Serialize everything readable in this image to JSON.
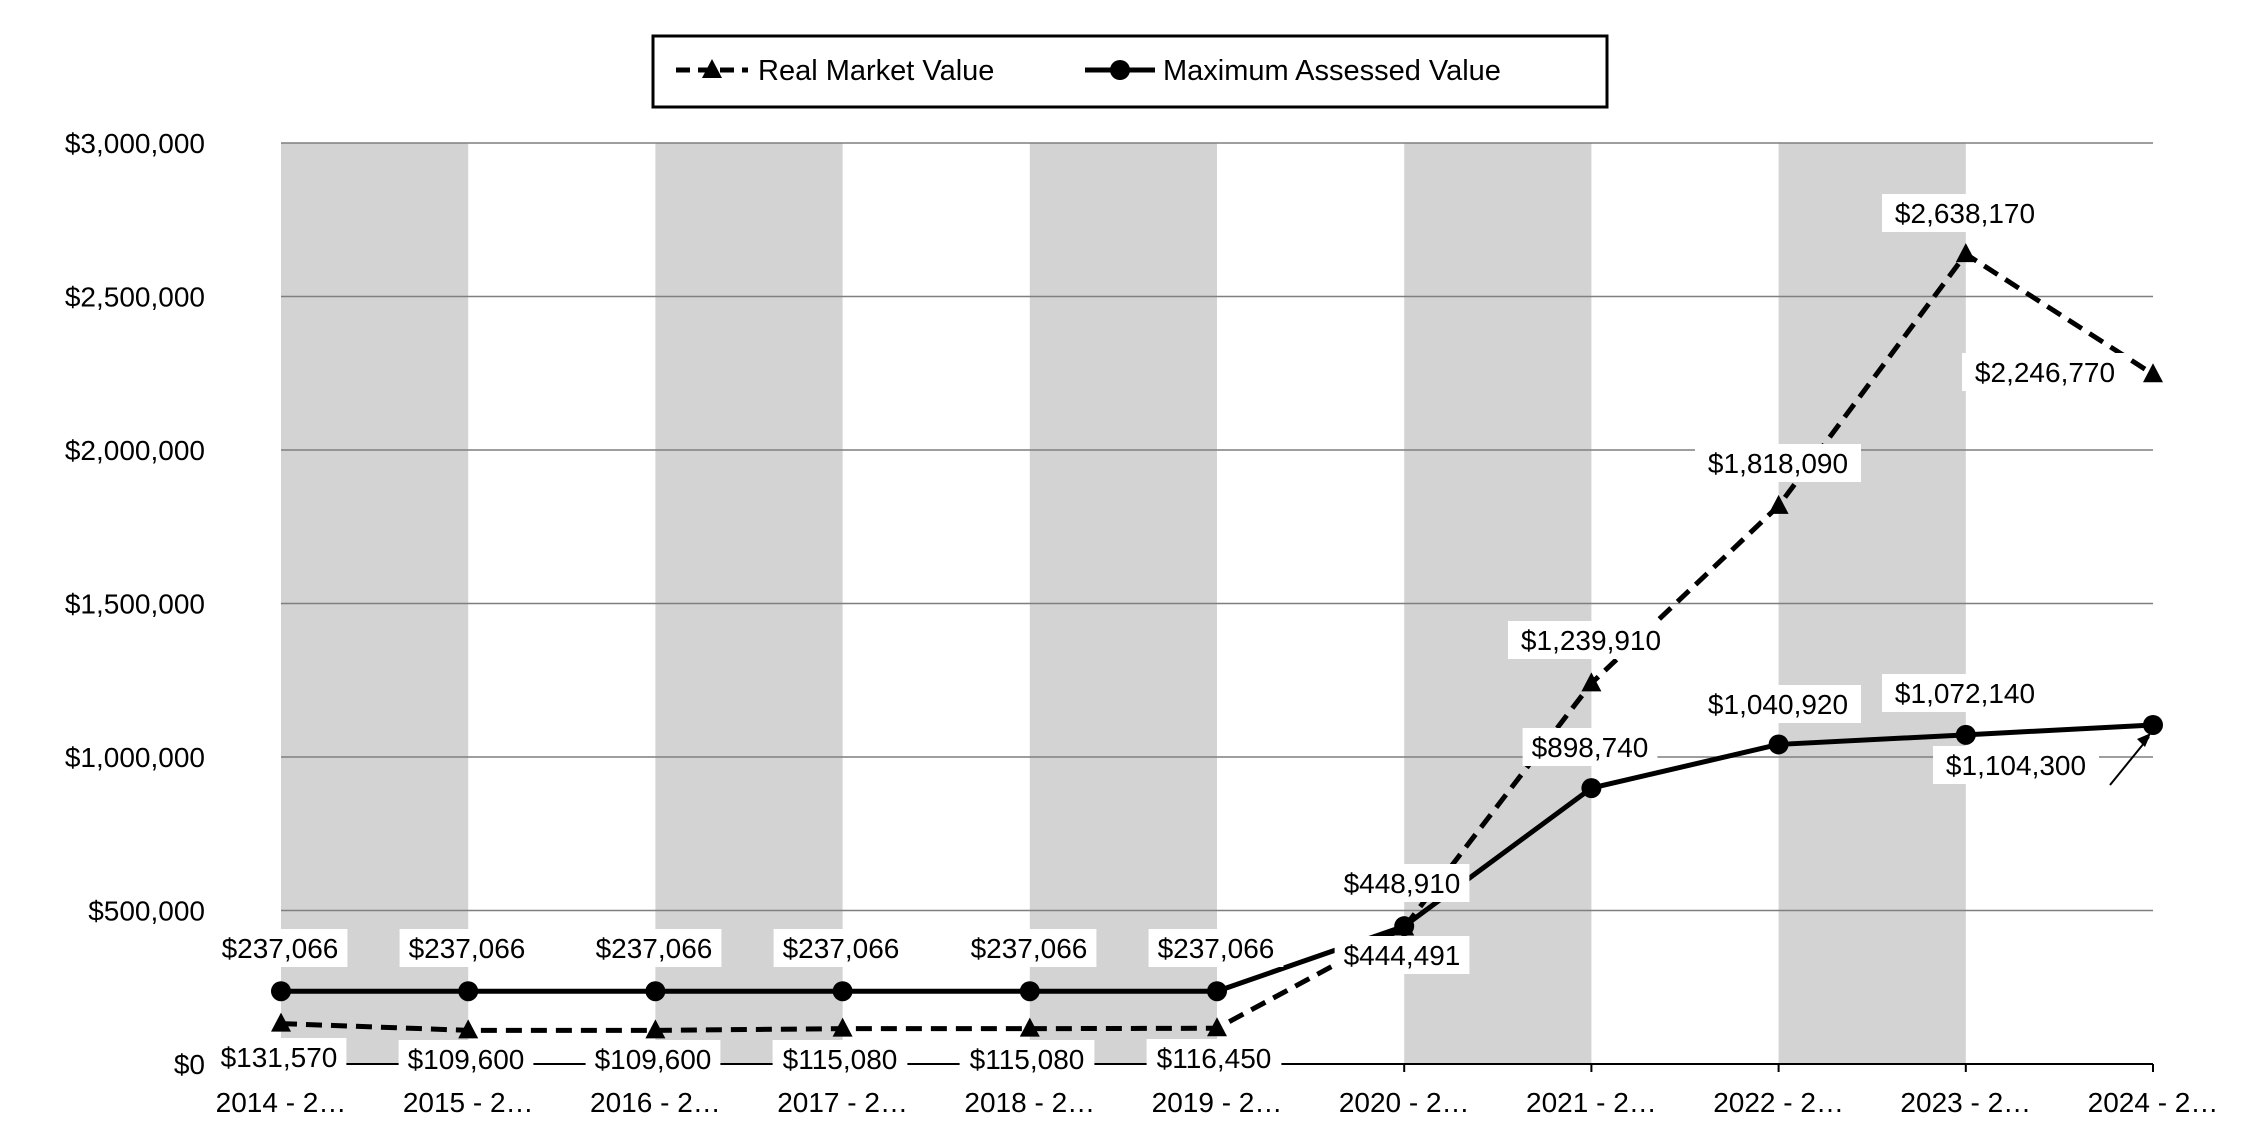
{
  "chart_data": {
    "type": "line",
    "title": "",
    "xlabel": "",
    "ylabel": "",
    "categories": [
      "2014 - 2…",
      "2015 - 2…",
      "2016 - 2…",
      "2017 - 2…",
      "2018 - 2…",
      "2019 - 2…",
      "2020 - 2…",
      "2021 - 2…",
      "2022 - 2…",
      "2023 - 2…",
      "2024 - 2…"
    ],
    "ylim": [
      0,
      3000000
    ],
    "yticks": [
      0,
      500000,
      1000000,
      1500000,
      2000000,
      2500000,
      3000000
    ],
    "ytick_labels": [
      "$0",
      "$500,000",
      "$1,000,000",
      "$1,500,000",
      "$2,000,000",
      "$2,500,000",
      "$3,000,000"
    ],
    "grid": true,
    "alternating_bands": true,
    "legend_position": "top-center",
    "series": [
      {
        "name": "Real Market Value",
        "style": "dashed",
        "marker": "triangle",
        "values": [
          131570,
          109600,
          109600,
          115080,
          115080,
          116450,
          444491,
          1239910,
          1818090,
          2638170,
          2246770
        ],
        "labels": [
          "$131,570",
          "$109,600",
          "$109,600",
          "$115,080",
          "$115,080",
          "$116,450",
          "$444,491",
          "$1,239,910",
          "$1,818,090",
          "$2,638,170",
          "$2,246,770"
        ]
      },
      {
        "name": "Maximum Assessed Value",
        "style": "solid",
        "marker": "circle",
        "values": [
          237066,
          237066,
          237066,
          237066,
          237066,
          237066,
          448910,
          898740,
          1040920,
          1072140,
          1104300
        ],
        "labels": [
          "$237,066",
          "$237,066",
          "$237,066",
          "$237,066",
          "$237,066",
          "$237,066",
          "$448,910",
          "$898,740",
          "$1,040,920",
          "$1,072,140",
          "$1,104,300"
        ]
      }
    ],
    "colors": {
      "line": "#000000",
      "band": "#d3d3d3",
      "grid": "#7f7f7f",
      "label_bg": "#ffffff"
    }
  }
}
